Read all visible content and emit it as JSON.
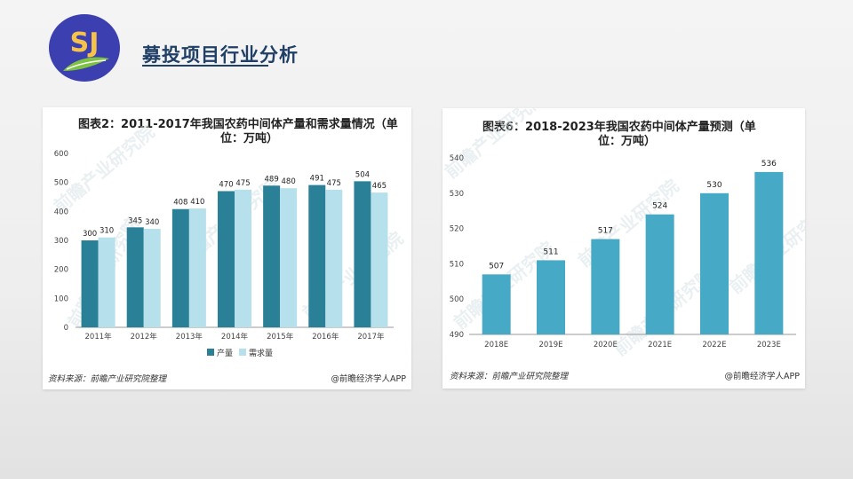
{
  "header": {
    "logo_text": "SJ",
    "title": "募投项目行业分析"
  },
  "colors": {
    "production": "#2a8097",
    "demand": "#b5e0ec",
    "forecast": "#46a9c6",
    "title": "#1f3f66"
  },
  "charts": {
    "left": {
      "title_line1": "图表2：2011-2017年我国农药中间体产量和需求量情况（单",
      "title_line2": "位：万吨）",
      "source": "资料来源：前瞻产业研究院整理",
      "credit": "@前瞻经济学人APP",
      "watermark": "前瞻产业研究院"
    },
    "right": {
      "title_line1": "图表6：2018-2023年我国农药中间体产量预测（单",
      "title_line2": "位：万吨）",
      "source": "资料来源：前瞻产业研究院整理",
      "credit": "@前瞻经济学人APP",
      "watermark": "前瞻产业研究院"
    }
  },
  "chart_data": [
    {
      "type": "bar",
      "title": "图表2：2011-2017年我国农药中间体产量和需求量情况（单位：万吨）",
      "categories": [
        "2011年",
        "2012年",
        "2013年",
        "2014年",
        "2015年",
        "2016年",
        "2017年"
      ],
      "series": [
        {
          "name": "产量",
          "values": [
            300,
            345,
            408,
            470,
            489,
            491,
            504
          ],
          "color": "#2a8097"
        },
        {
          "name": "需求量",
          "values": [
            310,
            340,
            410,
            475,
            480,
            475,
            465
          ],
          "color": "#b5e0ec"
        }
      ],
      "ylim": [
        0,
        600
      ],
      "yticks": [
        0,
        100,
        200,
        300,
        400,
        500,
        600
      ],
      "grid": false,
      "legend": "bottom"
    },
    {
      "type": "bar",
      "title": "图表6：2018-2023年我国农药中间体产量预测（单位：万吨）",
      "categories": [
        "2018E",
        "2019E",
        "2020E",
        "2021E",
        "2022E",
        "2023E"
      ],
      "values": [
        507,
        511,
        517,
        524,
        530,
        536
      ],
      "color": "#46a9c6",
      "ylim": [
        490,
        540
      ],
      "yticks": [
        490,
        500,
        510,
        520,
        530,
        540
      ],
      "grid": false,
      "legend": "none"
    }
  ]
}
